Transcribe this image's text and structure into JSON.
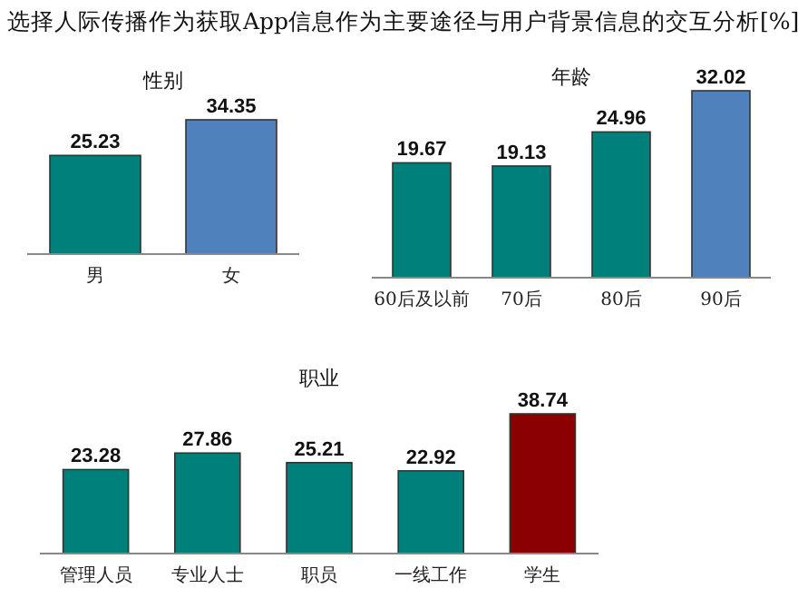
{
  "chart_data": [
    {
      "type": "bar",
      "title": "性别",
      "annotations": [
        "选择人际传播作为获取App信息作为主要途径与用户背景信息的交互分析[%]"
      ],
      "categories": [
        "男",
        "女"
      ],
      "values": [
        25.23,
        34.35
      ],
      "colors": [
        "#00807b",
        "#4f81bd"
      ],
      "data_labels": true,
      "tick_labels": "x"
    },
    {
      "type": "bar",
      "title": "年龄",
      "categories": [
        "60后及以前",
        "70后",
        "80后",
        "90后"
      ],
      "values": [
        19.67,
        19.13,
        24.96,
        32.02
      ],
      "colors": [
        "#00807b",
        "#00807b",
        "#00807b",
        "#4f81bd"
      ],
      "data_labels": true,
      "tick_labels": "x"
    },
    {
      "type": "bar",
      "title": "职业",
      "categories": [
        "管理人员",
        "专业人士",
        "职员",
        "一线工作",
        "学生"
      ],
      "values": [
        23.28,
        27.86,
        25.21,
        22.92,
        38.74
      ],
      "colors": [
        "#00807b",
        "#00807b",
        "#00807b",
        "#00807b",
        "#8b0000"
      ],
      "data_labels": true,
      "tick_labels": "x"
    }
  ]
}
